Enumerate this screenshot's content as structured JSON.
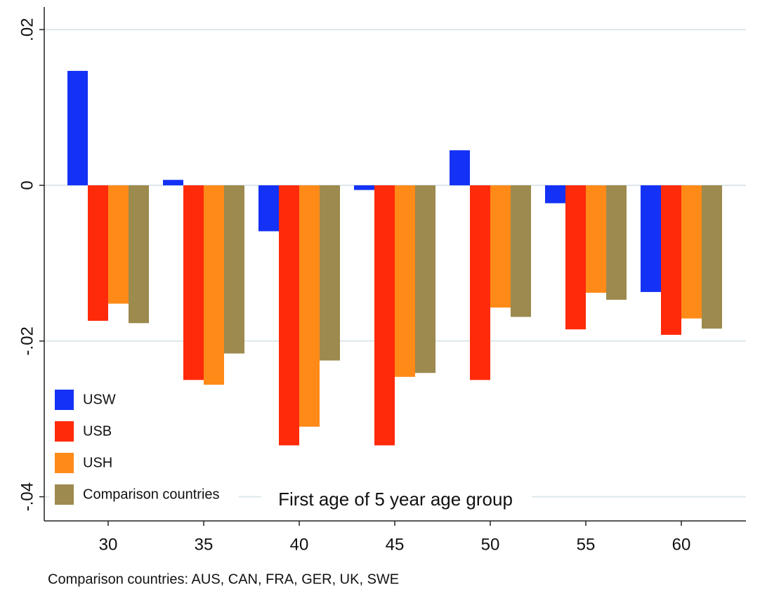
{
  "chart_data": {
    "type": "bar",
    "x_label": "First age of 5 year age group",
    "note": "Comparison countries: AUS, CAN, FRA, GER, UK, SWE",
    "categories": [
      "30",
      "35",
      "40",
      "45",
      "50",
      "55",
      "60"
    ],
    "series": [
      {
        "name": "USW",
        "color": "#1432f5",
        "values": [
          0.0147,
          0.0007,
          -0.0059,
          -0.0006,
          0.0045,
          -0.0023,
          -0.0137
        ]
      },
      {
        "name": "USB",
        "color": "#ff2a0a",
        "values": [
          -0.0174,
          -0.025,
          -0.0334,
          -0.0334,
          -0.025,
          -0.0185,
          -0.0192
        ]
      },
      {
        "name": "USH",
        "color": "#ff8a18",
        "values": [
          -0.0152,
          -0.0274,
          -0.031,
          -0.0246,
          -0.0157,
          -0.0138,
          -0.0171
        ]
      },
      {
        "name": "Comparison countries",
        "color": "#9c8a4e",
        "values": [
          -0.0177,
          -0.0216,
          -0.0225,
          -0.0241,
          -0.0169,
          -0.0147,
          -0.0184
        ]
      }
    ],
    "ylim": [
      -0.0431,
      0.0229
    ],
    "yticks": [
      {
        "value": 0.02,
        "label": ".02"
      },
      0,
      {
        "value": -0.02,
        "label": "-.02"
      },
      {
        "value": -0.04,
        "label": "-.04"
      }
    ],
    "grid": true,
    "legend": "lower left"
  }
}
